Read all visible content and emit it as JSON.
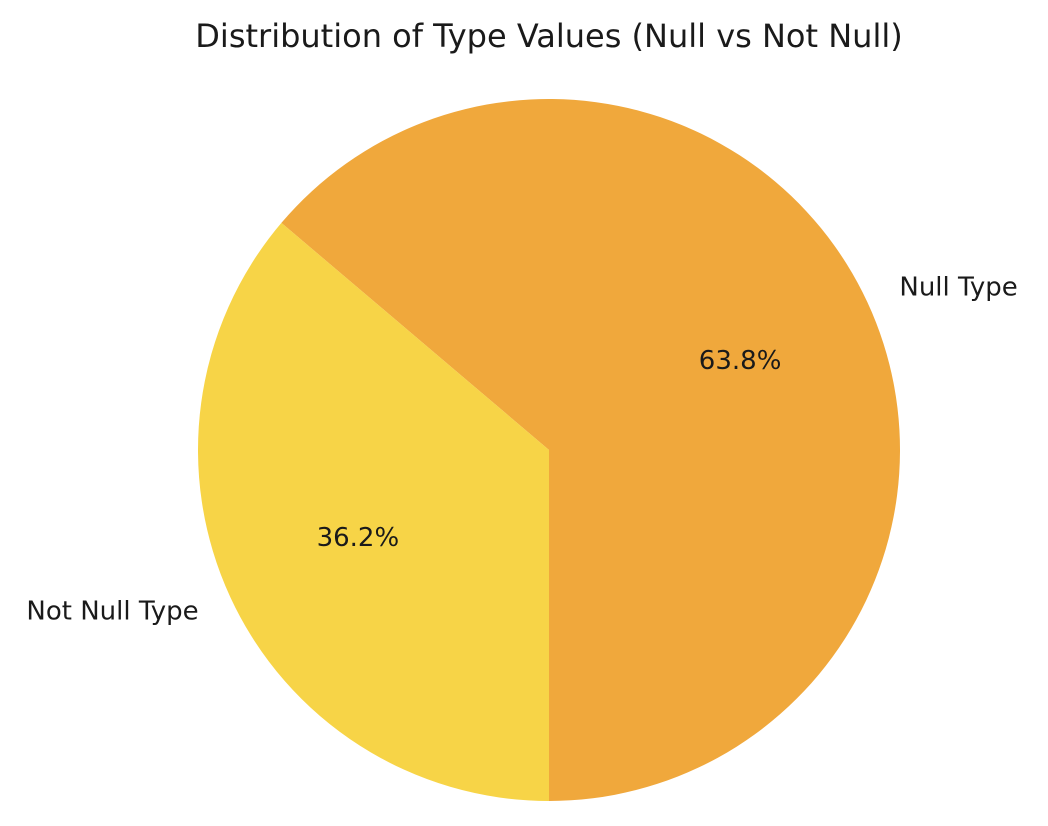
{
  "chart_data": {
    "type": "pie",
    "title": "Distribution of Type Values (Null vs Not Null)",
    "slices": [
      {
        "label": "Null Type",
        "value": 63.8,
        "pct_label": "63.8%",
        "color": "#f0a83c"
      },
      {
        "label": "Not Null Type",
        "value": 36.2,
        "pct_label": "36.2%",
        "color": "#f7d447"
      }
    ]
  }
}
